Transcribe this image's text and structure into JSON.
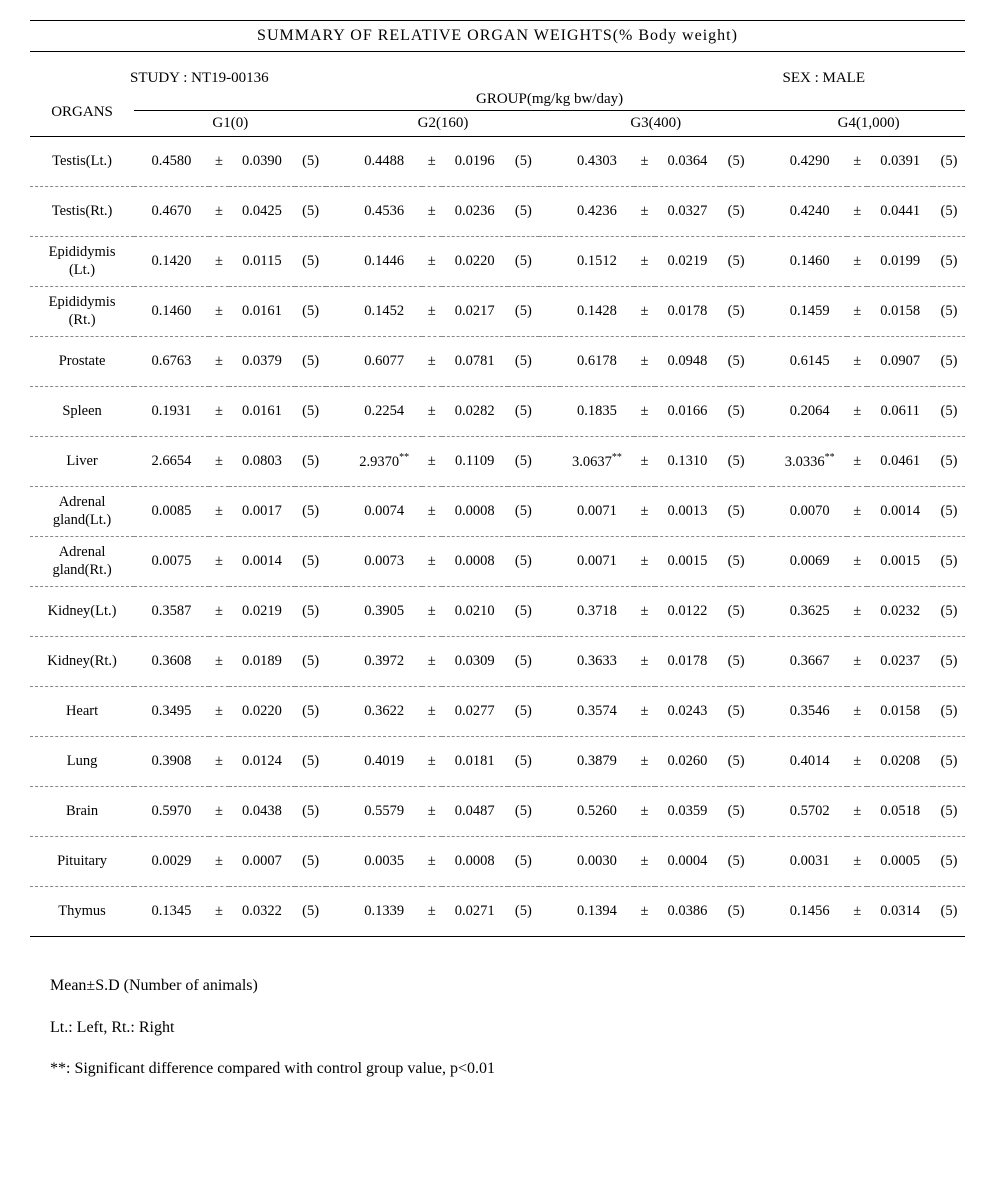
{
  "title": "SUMMARY OF RELATIVE ORGAN WEIGHTS(% Body weight)",
  "meta": {
    "study_label": "STUDY : NT19-00136",
    "sex_label": "SEX : MALE"
  },
  "group_header": "GROUP(mg/kg bw/day)",
  "organs_label": "ORGANS",
  "groups": [
    "G1(0)",
    "G2(160)",
    "G3(400)",
    "G4(1,000)"
  ],
  "pm": "±",
  "rows": [
    {
      "organ": "Testis(Lt.)",
      "vals": [
        {
          "mean": "0.4580",
          "sd": "0.0390",
          "n": "(5)",
          "sig": ""
        },
        {
          "mean": "0.4488",
          "sd": "0.0196",
          "n": "(5)",
          "sig": ""
        },
        {
          "mean": "0.4303",
          "sd": "0.0364",
          "n": "(5)",
          "sig": ""
        },
        {
          "mean": "0.4290",
          "sd": "0.0391",
          "n": "(5)",
          "sig": ""
        }
      ]
    },
    {
      "organ": "Testis(Rt.)",
      "vals": [
        {
          "mean": "0.4670",
          "sd": "0.0425",
          "n": "(5)",
          "sig": ""
        },
        {
          "mean": "0.4536",
          "sd": "0.0236",
          "n": "(5)",
          "sig": ""
        },
        {
          "mean": "0.4236",
          "sd": "0.0327",
          "n": "(5)",
          "sig": ""
        },
        {
          "mean": "0.4240",
          "sd": "0.0441",
          "n": "(5)",
          "sig": ""
        }
      ]
    },
    {
      "organ": "Epididymis(Lt.)",
      "vals": [
        {
          "mean": "0.1420",
          "sd": "0.0115",
          "n": "(5)",
          "sig": ""
        },
        {
          "mean": "0.1446",
          "sd": "0.0220",
          "n": "(5)",
          "sig": ""
        },
        {
          "mean": "0.1512",
          "sd": "0.0219",
          "n": "(5)",
          "sig": ""
        },
        {
          "mean": "0.1460",
          "sd": "0.0199",
          "n": "(5)",
          "sig": ""
        }
      ]
    },
    {
      "organ": "Epididymis(Rt.)",
      "vals": [
        {
          "mean": "0.1460",
          "sd": "0.0161",
          "n": "(5)",
          "sig": ""
        },
        {
          "mean": "0.1452",
          "sd": "0.0217",
          "n": "(5)",
          "sig": ""
        },
        {
          "mean": "0.1428",
          "sd": "0.0178",
          "n": "(5)",
          "sig": ""
        },
        {
          "mean": "0.1459",
          "sd": "0.0158",
          "n": "(5)",
          "sig": ""
        }
      ]
    },
    {
      "organ": "Prostate",
      "vals": [
        {
          "mean": "0.6763",
          "sd": "0.0379",
          "n": "(5)",
          "sig": ""
        },
        {
          "mean": "0.6077",
          "sd": "0.0781",
          "n": "(5)",
          "sig": ""
        },
        {
          "mean": "0.6178",
          "sd": "0.0948",
          "n": "(5)",
          "sig": ""
        },
        {
          "mean": "0.6145",
          "sd": "0.0907",
          "n": "(5)",
          "sig": ""
        }
      ]
    },
    {
      "organ": "Spleen",
      "vals": [
        {
          "mean": "0.1931",
          "sd": "0.0161",
          "n": "(5)",
          "sig": ""
        },
        {
          "mean": "0.2254",
          "sd": "0.0282",
          "n": "(5)",
          "sig": ""
        },
        {
          "mean": "0.1835",
          "sd": "0.0166",
          "n": "(5)",
          "sig": ""
        },
        {
          "mean": "0.2064",
          "sd": "0.0611",
          "n": "(5)",
          "sig": ""
        }
      ]
    },
    {
      "organ": "Liver",
      "vals": [
        {
          "mean": "2.6654",
          "sd": "0.0803",
          "n": "(5)",
          "sig": ""
        },
        {
          "mean": "2.9370",
          "sd": "0.1109",
          "n": "(5)",
          "sig": "**"
        },
        {
          "mean": "3.0637",
          "sd": "0.1310",
          "n": "(5)",
          "sig": "**"
        },
        {
          "mean": "3.0336",
          "sd": "0.0461",
          "n": "(5)",
          "sig": "**"
        }
      ]
    },
    {
      "organ": "Adrenal gland(Lt.)",
      "vals": [
        {
          "mean": "0.0085",
          "sd": "0.0017",
          "n": "(5)",
          "sig": ""
        },
        {
          "mean": "0.0074",
          "sd": "0.0008",
          "n": "(5)",
          "sig": ""
        },
        {
          "mean": "0.0071",
          "sd": "0.0013",
          "n": "(5)",
          "sig": ""
        },
        {
          "mean": "0.0070",
          "sd": "0.0014",
          "n": "(5)",
          "sig": ""
        }
      ]
    },
    {
      "organ": "Adrenal gland(Rt.)",
      "vals": [
        {
          "mean": "0.0075",
          "sd": "0.0014",
          "n": "(5)",
          "sig": ""
        },
        {
          "mean": "0.0073",
          "sd": "0.0008",
          "n": "(5)",
          "sig": ""
        },
        {
          "mean": "0.0071",
          "sd": "0.0015",
          "n": "(5)",
          "sig": ""
        },
        {
          "mean": "0.0069",
          "sd": "0.0015",
          "n": "(5)",
          "sig": ""
        }
      ]
    },
    {
      "organ": "Kidney(Lt.)",
      "vals": [
        {
          "mean": "0.3587",
          "sd": "0.0219",
          "n": "(5)",
          "sig": ""
        },
        {
          "mean": "0.3905",
          "sd": "0.0210",
          "n": "(5)",
          "sig": ""
        },
        {
          "mean": "0.3718",
          "sd": "0.0122",
          "n": "(5)",
          "sig": ""
        },
        {
          "mean": "0.3625",
          "sd": "0.0232",
          "n": "(5)",
          "sig": ""
        }
      ]
    },
    {
      "organ": "Kidney(Rt.)",
      "vals": [
        {
          "mean": "0.3608",
          "sd": "0.0189",
          "n": "(5)",
          "sig": ""
        },
        {
          "mean": "0.3972",
          "sd": "0.0309",
          "n": "(5)",
          "sig": ""
        },
        {
          "mean": "0.3633",
          "sd": "0.0178",
          "n": "(5)",
          "sig": ""
        },
        {
          "mean": "0.3667",
          "sd": "0.0237",
          "n": "(5)",
          "sig": ""
        }
      ]
    },
    {
      "organ": "Heart",
      "vals": [
        {
          "mean": "0.3495",
          "sd": "0.0220",
          "n": "(5)",
          "sig": ""
        },
        {
          "mean": "0.3622",
          "sd": "0.0277",
          "n": "(5)",
          "sig": ""
        },
        {
          "mean": "0.3574",
          "sd": "0.0243",
          "n": "(5)",
          "sig": ""
        },
        {
          "mean": "0.3546",
          "sd": "0.0158",
          "n": "(5)",
          "sig": ""
        }
      ]
    },
    {
      "organ": "Lung",
      "vals": [
        {
          "mean": "0.3908",
          "sd": "0.0124",
          "n": "(5)",
          "sig": ""
        },
        {
          "mean": "0.4019",
          "sd": "0.0181",
          "n": "(5)",
          "sig": ""
        },
        {
          "mean": "0.3879",
          "sd": "0.0260",
          "n": "(5)",
          "sig": ""
        },
        {
          "mean": "0.4014",
          "sd": "0.0208",
          "n": "(5)",
          "sig": ""
        }
      ]
    },
    {
      "organ": "Brain",
      "vals": [
        {
          "mean": "0.5970",
          "sd": "0.0438",
          "n": "(5)",
          "sig": ""
        },
        {
          "mean": "0.5579",
          "sd": "0.0487",
          "n": "(5)",
          "sig": ""
        },
        {
          "mean": "0.5260",
          "sd": "0.0359",
          "n": "(5)",
          "sig": ""
        },
        {
          "mean": "0.5702",
          "sd": "0.0518",
          "n": "(5)",
          "sig": ""
        }
      ]
    },
    {
      "organ": "Pituitary",
      "vals": [
        {
          "mean": "0.0029",
          "sd": "0.0007",
          "n": "(5)",
          "sig": ""
        },
        {
          "mean": "0.0035",
          "sd": "0.0008",
          "n": "(5)",
          "sig": ""
        },
        {
          "mean": "0.0030",
          "sd": "0.0004",
          "n": "(5)",
          "sig": ""
        },
        {
          "mean": "0.0031",
          "sd": "0.0005",
          "n": "(5)",
          "sig": ""
        }
      ]
    },
    {
      "organ": "Thymus",
      "solid": true,
      "vals": [
        {
          "mean": "0.1345",
          "sd": "0.0322",
          "n": "(5)",
          "sig": ""
        },
        {
          "mean": "0.1339",
          "sd": "0.0271",
          "n": "(5)",
          "sig": ""
        },
        {
          "mean": "0.1394",
          "sd": "0.0386",
          "n": "(5)",
          "sig": ""
        },
        {
          "mean": "0.1456",
          "sd": "0.0314",
          "n": "(5)",
          "sig": ""
        }
      ]
    }
  ],
  "notes": [
    "Mean±S.D (Number of animals)",
    "Lt.: Left, Rt.: Right",
    "**: Significant difference compared with control group value, p<0.01"
  ]
}
